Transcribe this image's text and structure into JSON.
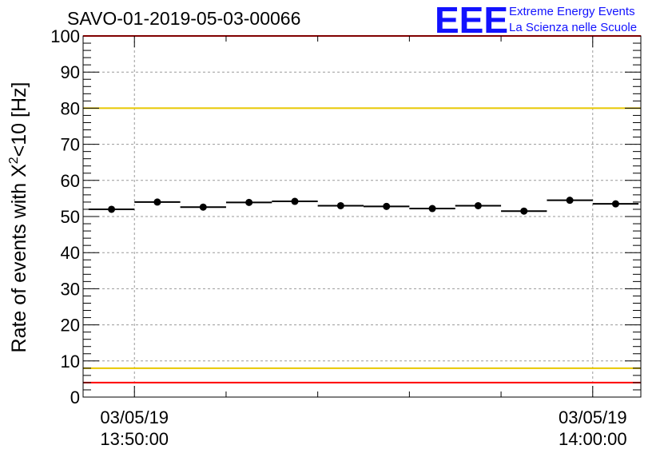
{
  "chart_data": {
    "type": "scatter",
    "title": "SAVO-01-2019-05-03-00066",
    "ylabel": "Rate of events with X<sup>2</sup><10 [Hz]",
    "ylabel_parts": {
      "before": "Rate of events with X",
      "sup": "2",
      "after": "<10 [Hz]"
    },
    "xlabel": "",
    "ylim": [
      0,
      100
    ],
    "yticks": [
      "0",
      "10",
      "20",
      "30",
      "40",
      "50",
      "60",
      "70",
      "80",
      "90",
      "100"
    ],
    "xlim_minutes": [
      -1.12,
      11.05
    ],
    "xticks": [
      {
        "minute": 0,
        "date": "03/05/19",
        "time": "13:50:00"
      },
      {
        "minute": 10,
        "date": "03/05/19",
        "time": "14:00:00"
      }
    ],
    "grid": true,
    "series": [
      {
        "name": "rate",
        "bin_width_minutes": 1.0,
        "x_minutes": [
          -0.5,
          0.5,
          1.5,
          2.5,
          3.5,
          4.5,
          5.5,
          6.5,
          7.5,
          8.5,
          9.5,
          10.5
        ],
        "values": [
          52.0,
          54.0,
          52.6,
          53.9,
          54.2,
          53.0,
          52.8,
          52.2,
          53.0,
          51.5,
          54.5,
          53.5
        ]
      }
    ],
    "reference_lines": [
      {
        "name": "red-upper",
        "y": 100,
        "color": "#ff0000"
      },
      {
        "name": "yellow-upper",
        "y": 80,
        "color": "#e8c800"
      },
      {
        "name": "yellow-lower",
        "y": 8,
        "color": "#e8c800"
      },
      {
        "name": "red-lower",
        "y": 4,
        "color": "#ff0000"
      }
    ]
  },
  "logo": {
    "mark": "EEE",
    "line1": "Extreme Energy Events",
    "line2": "La Scienza nelle Scuole",
    "color": "#1212ff"
  }
}
